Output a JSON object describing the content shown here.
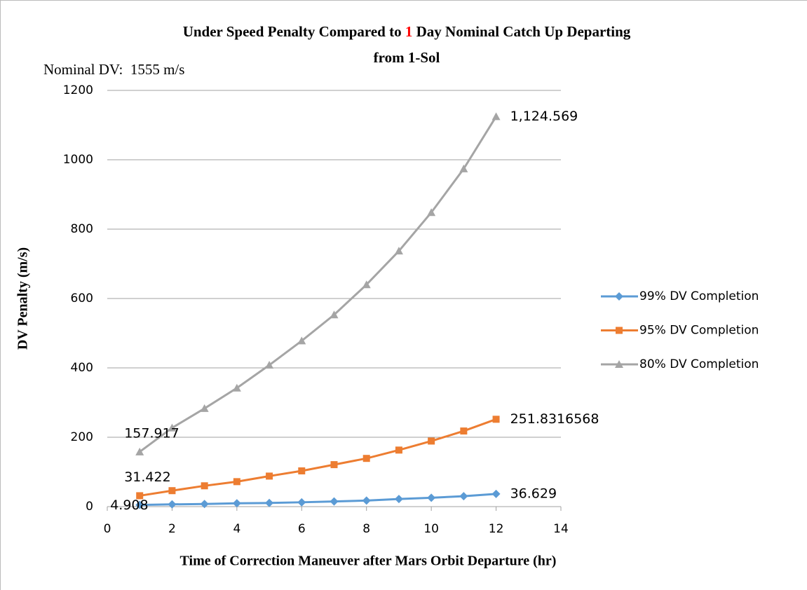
{
  "chart_data": {
    "type": "line",
    "title": [
      [
        {
          "text": "Under Speed Penalty Compared to ",
          "color": "#000000"
        },
        {
          "text": "1",
          "color": "#ff0000"
        },
        {
          "text": " Day Nominal Catch Up Departing",
          "color": "#000000"
        }
      ],
      [
        {
          "text": "from 1-Sol",
          "color": "#000000"
        }
      ]
    ],
    "annotation": "Nominal DV:  1555 m/s",
    "xlabel": "Time of Correction Maneuver after Mars Orbit Departure (hr)",
    "ylabel": "DV Penalty (m/s)",
    "x": [
      1,
      2,
      3,
      4,
      5,
      6,
      7,
      8,
      9,
      10,
      11,
      12
    ],
    "series": [
      {
        "name": "99% DV Completion",
        "color": "#5b9bd5",
        "marker": "diamond",
        "values": [
          4.908,
          6.5,
          7.5,
          9.5,
          10.5,
          12.5,
          15,
          17.5,
          22,
          25.5,
          30,
          36.629
        ]
      },
      {
        "name": "95% DV Completion",
        "color": "#ed7d31",
        "marker": "square",
        "values": [
          31.422,
          46,
          60,
          72,
          88,
          103,
          121,
          139,
          163,
          189,
          218,
          251.8316568
        ]
      },
      {
        "name": "80% DV Completion",
        "color": "#a5a5a5",
        "marker": "triangle",
        "values": [
          157.917,
          227,
          283,
          342,
          408,
          478,
          553,
          640,
          737,
          848,
          974,
          1124.569
        ],
        "value_labels": [
          "157.917",
          null,
          null,
          null,
          null,
          null,
          null,
          null,
          null,
          null,
          null,
          "1,124.569"
        ]
      }
    ],
    "labeled_points": [
      0,
      11
    ],
    "xlim": [
      0,
      14
    ],
    "xticks": [
      0,
      2,
      4,
      6,
      8,
      10,
      12,
      14
    ],
    "ylim": [
      0,
      1200
    ],
    "yticks": [
      0,
      200,
      400,
      600,
      800,
      1000,
      1200
    ],
    "grid": true,
    "legend": "right"
  }
}
